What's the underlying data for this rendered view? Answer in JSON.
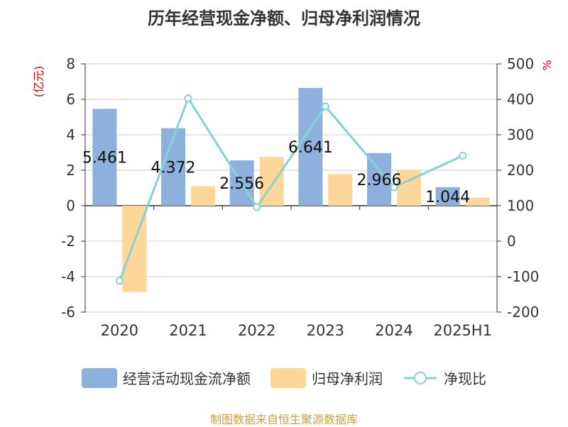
{
  "title": "历年经营现金净额、归母净利润情况",
  "left_axis_unit": "(亿元)",
  "right_axis_unit": "%",
  "source": "制图数据来自恒生聚源数据库",
  "colors": {
    "cash_flow": "#8eb0dc",
    "net_profit": "#ffd699",
    "ratio": "#86d3d6",
    "unit_label": "#e00000"
  },
  "chart_data": {
    "type": "bar",
    "categories": [
      "2020",
      "2021",
      "2022",
      "2023",
      "2024",
      "2025H1"
    ],
    "series": [
      {
        "name": "经营活动现金流净额",
        "type": "bar",
        "axis": "left",
        "values": [
          5.461,
          4.372,
          2.556,
          6.641,
          2.966,
          1.044
        ],
        "labels": [
          "5.461",
          "4.372",
          "2.556",
          "6.641",
          "2.966",
          "1.044"
        ]
      },
      {
        "name": "归母净利润",
        "type": "bar",
        "axis": "left",
        "values": [
          -4.85,
          1.1,
          2.75,
          1.78,
          2.0,
          0.45
        ]
      },
      {
        "name": "净现比",
        "type": "line",
        "axis": "right",
        "values": [
          -112,
          403,
          96,
          380,
          152,
          241
        ]
      }
    ],
    "y_left": {
      "range": [
        -6,
        8
      ],
      "ticks": [
        "-6",
        "-4",
        "-2",
        "0",
        "2",
        "4",
        "6",
        "8"
      ]
    },
    "y_right": {
      "range": [
        -200,
        500
      ],
      "ticks": [
        "-200",
        "-100",
        "0",
        "100",
        "200",
        "300",
        "400",
        "500"
      ]
    },
    "grid": true,
    "legend_position": "bottom"
  }
}
